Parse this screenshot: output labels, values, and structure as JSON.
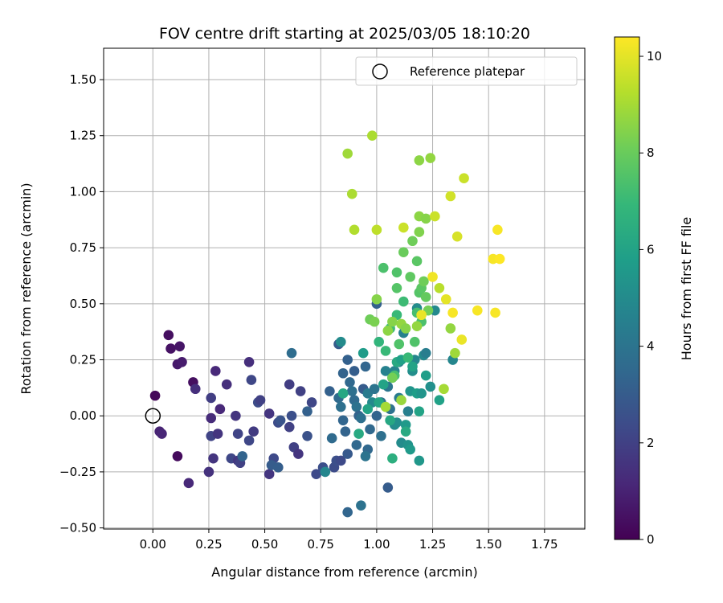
{
  "chart_data": {
    "type": "scatter",
    "title": "FOV centre drift starting at 2025/03/05 18:10:20",
    "xlabel": "Angular distance from reference (arcmin)",
    "ylabel": "Rotation from reference (arcmin)",
    "xlim": [
      -0.22,
      1.93
    ],
    "ylim": [
      -0.505,
      1.64
    ],
    "xticks": [
      0.0,
      0.25,
      0.5,
      0.75,
      1.0,
      1.25,
      1.5,
      1.75
    ],
    "xtick_labels": [
      "0.00",
      "0.25",
      "0.50",
      "0.75",
      "1.00",
      "1.25",
      "1.50",
      "1.75"
    ],
    "yticks": [
      -0.5,
      -0.25,
      0.0,
      0.25,
      0.5,
      0.75,
      1.0,
      1.25,
      1.5
    ],
    "ytick_labels": [
      "−0.50",
      "−0.25",
      "0.00",
      "0.25",
      "0.50",
      "0.75",
      "1.00",
      "1.25",
      "1.50"
    ],
    "grid": true,
    "legend": {
      "placement": "top-right",
      "entries": [
        "Reference platepar"
      ]
    },
    "reference_point": {
      "x": 0.0,
      "y": 0.0
    },
    "colorbar": {
      "label": "Hours from first FF file",
      "colormap": "viridis",
      "range": [
        0,
        10.4
      ],
      "ticks": [
        0,
        2,
        4,
        6,
        8,
        10
      ],
      "tick_labels": [
        "0",
        "2",
        "4",
        "6",
        "8",
        "10"
      ]
    },
    "points": [
      [
        0.01,
        0.09,
        0.2
      ],
      [
        0.07,
        0.36,
        0.4
      ],
      [
        0.08,
        0.3,
        0.5
      ],
      [
        0.12,
        0.31,
        0.6
      ],
      [
        0.11,
        0.23,
        0.7
      ],
      [
        0.13,
        0.24,
        0.8
      ],
      [
        0.03,
        -0.07,
        1.0
      ],
      [
        0.04,
        -0.08,
        1.1
      ],
      [
        0.11,
        -0.18,
        0.3
      ],
      [
        0.18,
        0.15,
        0.4
      ],
      [
        0.19,
        0.12,
        1.4
      ],
      [
        0.16,
        -0.3,
        1.2
      ],
      [
        0.25,
        -0.25,
        1.5
      ],
      [
        0.28,
        0.2,
        1.2
      ],
      [
        0.26,
        0.08,
        1.9
      ],
      [
        0.26,
        -0.01,
        1.3
      ],
      [
        0.3,
        0.03,
        1.2
      ],
      [
        0.33,
        0.14,
        1.4
      ],
      [
        0.26,
        -0.09,
        2.1
      ],
      [
        0.29,
        -0.08,
        1.6
      ],
      [
        0.27,
        -0.19,
        1.6
      ],
      [
        0.35,
        -0.19,
        2.2
      ],
      [
        0.37,
        0.0,
        1.6
      ],
      [
        0.38,
        -0.08,
        2.1
      ],
      [
        0.38,
        -0.2,
        1.7
      ],
      [
        0.39,
        -0.21,
        2.0
      ],
      [
        0.4,
        -0.18,
        3.3
      ],
      [
        0.43,
        0.24,
        1.4
      ],
      [
        0.44,
        0.16,
        2.2
      ],
      [
        0.45,
        -0.07,
        1.8
      ],
      [
        0.43,
        -0.11,
        2.2
      ],
      [
        0.47,
        0.06,
        2.4
      ],
      [
        0.48,
        0.07,
        2.0
      ],
      [
        0.52,
        0.01,
        1.6
      ],
      [
        0.52,
        -0.26,
        1.6
      ],
      [
        0.54,
        -0.19,
        2.3
      ],
      [
        0.56,
        -0.03,
        2.4
      ],
      [
        0.57,
        -0.02,
        2.7
      ],
      [
        0.53,
        -0.22,
        3.0
      ],
      [
        0.56,
        -0.23,
        3.1
      ],
      [
        0.61,
        0.14,
        1.9
      ],
      [
        0.61,
        -0.05,
        2.0
      ],
      [
        0.62,
        0.0,
        2.5
      ],
      [
        0.63,
        -0.14,
        2.0
      ],
      [
        0.65,
        -0.17,
        1.6
      ],
      [
        0.62,
        0.28,
        3.7
      ],
      [
        0.66,
        0.11,
        2.0
      ],
      [
        0.69,
        0.02,
        3.2
      ],
      [
        0.71,
        0.06,
        2.2
      ],
      [
        0.69,
        -0.09,
        2.6
      ],
      [
        0.73,
        -0.26,
        2.3
      ],
      [
        0.76,
        -0.23,
        2.5
      ],
      [
        0.77,
        -0.25,
        4.8
      ],
      [
        0.79,
        0.11,
        3.2
      ],
      [
        0.8,
        -0.1,
        3.6
      ],
      [
        0.81,
        -0.23,
        2.4
      ],
      [
        0.82,
        -0.2,
        2.5
      ],
      [
        0.84,
        -0.2,
        2.3
      ],
      [
        0.83,
        0.32,
        3.0
      ],
      [
        0.84,
        0.33,
        5.0
      ],
      [
        0.85,
        0.19,
        3.3
      ],
      [
        0.83,
        0.08,
        3.6
      ],
      [
        0.84,
        0.04,
        3.8
      ],
      [
        0.85,
        -0.02,
        3.4
      ],
      [
        0.86,
        -0.07,
        3.3
      ],
      [
        0.87,
        -0.17,
        2.9
      ],
      [
        0.87,
        0.25,
        3.2
      ],
      [
        0.88,
        0.15,
        3.5
      ],
      [
        0.87,
        -0.43,
        3.4
      ],
      [
        0.89,
        0.11,
        3.8
      ],
      [
        0.9,
        0.2,
        3.1
      ],
      [
        0.9,
        0.07,
        3.6
      ],
      [
        0.91,
        0.04,
        3.9
      ],
      [
        0.91,
        -0.13,
        3.5
      ],
      [
        0.92,
        0.0,
        3.3
      ],
      [
        0.93,
        -0.01,
        3.8
      ],
      [
        0.94,
        0.12,
        3.0
      ],
      [
        0.94,
        0.28,
        5.7
      ],
      [
        0.95,
        0.22,
        3.4
      ],
      [
        0.96,
        0.1,
        4.3
      ],
      [
        0.96,
        -0.15,
        3.5
      ],
      [
        0.95,
        -0.18,
        4.0
      ],
      [
        0.93,
        -0.4,
        3.9
      ],
      [
        0.97,
        -0.06,
        3.5
      ],
      [
        0.98,
        0.06,
        4.9
      ],
      [
        0.99,
        0.12,
        4.0
      ],
      [
        1.0,
        0.5,
        3.2
      ],
      [
        1.0,
        0.0,
        3.3
      ],
      [
        1.02,
        -0.09,
        3.8
      ],
      [
        1.02,
        0.06,
        3.9
      ],
      [
        1.04,
        0.2,
        4.6
      ],
      [
        1.05,
        0.13,
        4.1
      ],
      [
        1.05,
        -0.32,
        3.0
      ],
      [
        1.06,
        0.03,
        3.9
      ],
      [
        1.07,
        0.17,
        4.4
      ],
      [
        1.08,
        -0.04,
        5.0
      ],
      [
        1.09,
        -0.03,
        5.1
      ],
      [
        1.08,
        0.2,
        4.7
      ],
      [
        1.1,
        0.24,
        4.5
      ],
      [
        1.1,
        0.08,
        4.3
      ],
      [
        1.11,
        -0.12,
        5.0
      ],
      [
        1.12,
        0.37,
        4.6
      ],
      [
        1.13,
        -0.04,
        5.6
      ],
      [
        1.14,
        -0.13,
        5.3
      ],
      [
        1.14,
        0.02,
        4.5
      ],
      [
        1.15,
        0.11,
        5.4
      ],
      [
        1.16,
        0.2,
        5.1
      ],
      [
        1.17,
        0.25,
        4.8
      ],
      [
        1.18,
        0.1,
        5.8
      ],
      [
        1.19,
        -0.2,
        5.5
      ],
      [
        1.2,
        0.1,
        5.4
      ],
      [
        1.21,
        0.27,
        4.9
      ],
      [
        1.22,
        0.28,
        4.4
      ],
      [
        1.24,
        0.13,
        5.2
      ],
      [
        1.26,
        0.47,
        4.9
      ],
      [
        1.34,
        0.25,
        4.8
      ],
      [
        1.18,
        0.48,
        5.0
      ],
      [
        1.15,
        -0.15,
        5.6
      ],
      [
        1.07,
        -0.19,
        6.5
      ],
      [
        0.85,
        0.1,
        6.2
      ],
      [
        0.92,
        -0.08,
        6.3
      ],
      [
        0.96,
        0.03,
        6.0
      ],
      [
        1.01,
        0.06,
        6.1
      ],
      [
        1.03,
        0.14,
        6.0
      ],
      [
        1.06,
        -0.02,
        6.2
      ],
      [
        1.09,
        0.24,
        6.3
      ],
      [
        1.11,
        0.25,
        5.9
      ],
      [
        1.13,
        -0.07,
        6.3
      ],
      [
        1.16,
        0.22,
        6.0
      ],
      [
        1.19,
        0.02,
        6.0
      ],
      [
        1.22,
        0.18,
        5.8
      ],
      [
        1.28,
        0.07,
        5.9
      ],
      [
        1.01,
        0.33,
        6.8
      ],
      [
        1.04,
        0.29,
        7.0
      ],
      [
        1.06,
        0.39,
        7.2
      ],
      [
        1.08,
        0.18,
        7.3
      ],
      [
        1.09,
        0.45,
        7.0
      ],
      [
        1.1,
        0.32,
        7.5
      ],
      [
        1.12,
        0.51,
        7.1
      ],
      [
        1.14,
        0.26,
        7.0
      ],
      [
        1.17,
        0.33,
        7.5
      ],
      [
        1.18,
        0.46,
        7.3
      ],
      [
        1.19,
        0.55,
        7.6
      ],
      [
        1.2,
        0.42,
        7.4
      ],
      [
        1.03,
        0.66,
        7.4
      ],
      [
        1.09,
        0.64,
        7.5
      ],
      [
        1.09,
        0.57,
        7.6
      ],
      [
        1.15,
        0.62,
        7.8
      ],
      [
        1.18,
        0.69,
        7.7
      ],
      [
        1.2,
        0.57,
        7.7
      ],
      [
        1.22,
        0.53,
        7.9
      ],
      [
        1.12,
        0.73,
        8.0
      ],
      [
        1.16,
        0.78,
        8.1
      ],
      [
        1.21,
        0.6,
        8.1
      ],
      [
        1.23,
        0.47,
        8.2
      ],
      [
        0.97,
        0.43,
        8.1
      ],
      [
        0.99,
        0.42,
        8.3
      ],
      [
        1.0,
        0.52,
        8.5
      ],
      [
        1.05,
        0.38,
        8.6
      ],
      [
        1.07,
        0.42,
        8.5
      ],
      [
        1.11,
        0.41,
        8.7
      ],
      [
        1.11,
        0.07,
        8.8
      ],
      [
        1.13,
        0.39,
        8.5
      ],
      [
        1.18,
        0.4,
        8.7
      ],
      [
        1.19,
        0.82,
        8.4
      ],
      [
        1.19,
        0.89,
        8.6
      ],
      [
        1.22,
        0.88,
        8.5
      ],
      [
        1.19,
        1.14,
        8.6
      ],
      [
        1.24,
        1.15,
        8.7
      ],
      [
        1.07,
        0.17,
        8.2
      ],
      [
        1.33,
        0.39,
        8.7
      ],
      [
        1.35,
        0.28,
        8.9
      ],
      [
        1.3,
        0.12,
        9.0
      ],
      [
        1.28,
        0.57,
        9.3
      ],
      [
        0.87,
        1.17,
        8.9
      ],
      [
        0.89,
        0.99,
        9.1
      ],
      [
        0.9,
        0.83,
        9.2
      ],
      [
        0.98,
        1.25,
        9.1
      ],
      [
        1.0,
        0.83,
        9.4
      ],
      [
        1.04,
        0.04,
        9.0
      ],
      [
        1.12,
        0.84,
        9.6
      ],
      [
        1.26,
        0.89,
        9.6
      ],
      [
        1.33,
        0.98,
        9.7
      ],
      [
        1.36,
        0.8,
        9.8
      ],
      [
        1.39,
        1.06,
        9.6
      ],
      [
        1.2,
        0.45,
        10.1
      ],
      [
        1.25,
        0.62,
        10.2
      ],
      [
        1.31,
        0.52,
        10.0
      ],
      [
        1.34,
        0.46,
        10.3
      ],
      [
        1.38,
        0.34,
        10.1
      ],
      [
        1.45,
        0.47,
        10.3
      ],
      [
        1.52,
        0.7,
        10.3
      ],
      [
        1.53,
        0.46,
        10.3
      ],
      [
        1.54,
        0.83,
        10.3
      ],
      [
        1.55,
        0.7,
        10.4
      ]
    ]
  }
}
